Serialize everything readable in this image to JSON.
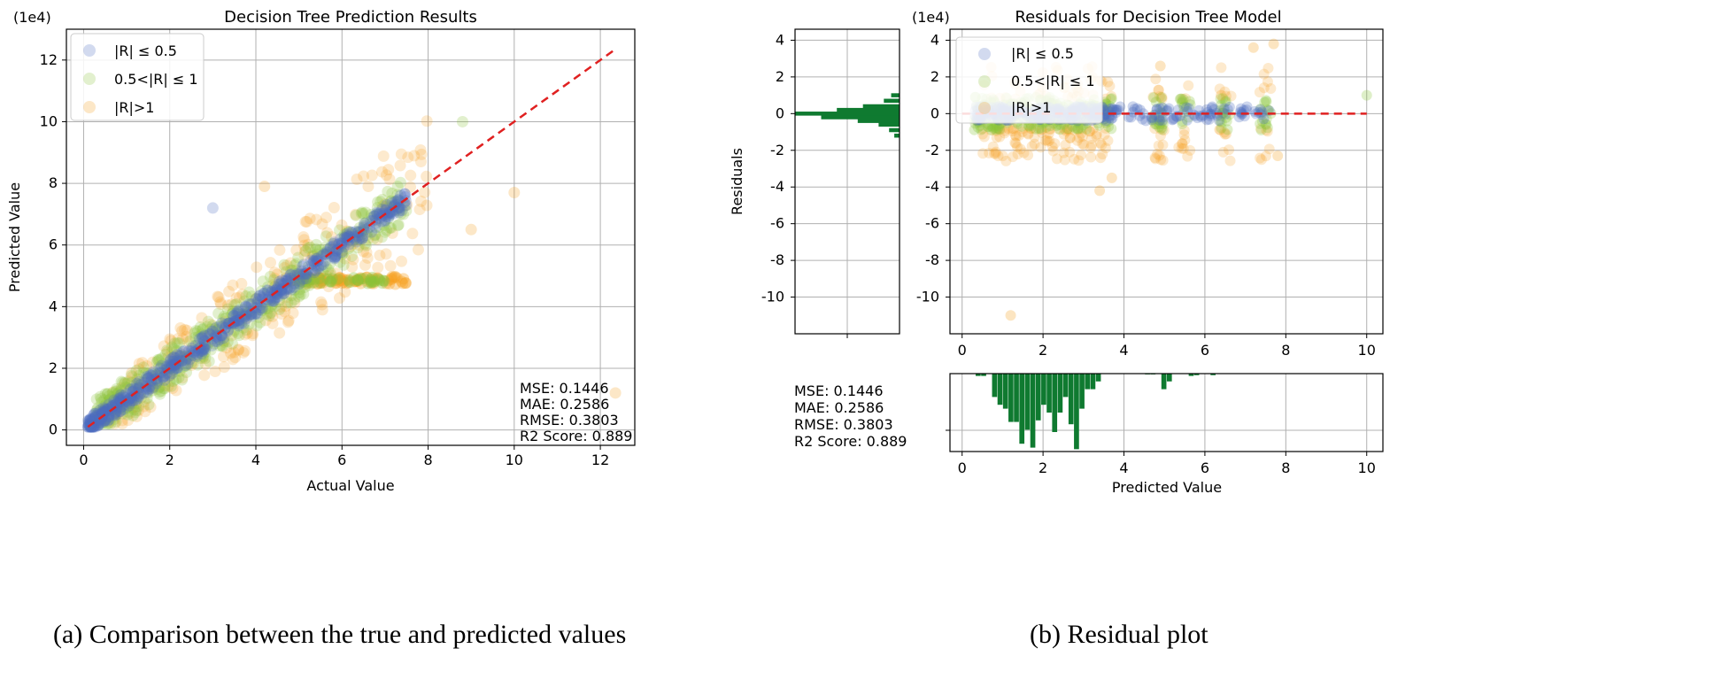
{
  "chart_data": [
    {
      "id": "left",
      "type": "scatter",
      "title": "Decision Tree Prediction Results",
      "xlabel": "Actual Value",
      "ylabel": "Predicted Value",
      "offset_label": "(1e4)",
      "xlim": [
        -0.4,
        12.8
      ],
      "ylim": [
        -0.5,
        13.0
      ],
      "xticks": [
        0,
        2,
        4,
        6,
        8,
        10,
        12
      ],
      "yticks": [
        0,
        2,
        4,
        6,
        8,
        10,
        12
      ],
      "grid": true,
      "legend": [
        {
          "label": "|R| ≤ 0.5",
          "color": "#4a6cc0"
        },
        {
          "label": "0.5<|R| ≤ 1",
          "color": "#8ac43a"
        },
        {
          "label": "|R|>1",
          "color": "#f5a020"
        }
      ],
      "reference_line": {
        "from": [
          0.1,
          0.1
        ],
        "to": [
          12.3,
          12.3
        ],
        "color": "#e02020"
      },
      "metrics": [
        "MSE: 0.1446",
        "MAE: 0.2586",
        "RMSE: 0.3803",
        "R2 Score: 0.889"
      ]
    },
    {
      "id": "right",
      "type": "scatter",
      "title": "Residuals for Decision Tree Model",
      "xlabel": "Predicted Value",
      "ylabel": "Residuals",
      "offset_label": "(1e4)",
      "xlim": [
        -0.3,
        10.4
      ],
      "ylim": [
        -12.0,
        4.6
      ],
      "xticks": [
        0,
        2,
        4,
        6,
        8,
        10
      ],
      "yticks": [
        4,
        2,
        0,
        -2,
        -4,
        -6,
        -8,
        -10
      ],
      "grid": true,
      "legend": [
        {
          "label": "|R| ≤ 0.5",
          "color": "#4a6cc0"
        },
        {
          "label": "0.5<|R| ≤ 1",
          "color": "#8ac43a"
        },
        {
          "label": "|R|>1",
          "color": "#f5a020"
        }
      ],
      "reference_line": {
        "from": [
          0,
          0
        ],
        "to": [
          10,
          0
        ],
        "color": "#e02020"
      },
      "metrics": [
        "MSE: 0.1446",
        "MAE: 0.2586",
        "RMSE: 0.3803",
        "R2 Score: 0.889"
      ],
      "hist_color": "#0f7a30"
    }
  ],
  "captions": {
    "a": "(a) Comparison between the true and predicted values",
    "b": "(b) Residual plot"
  }
}
